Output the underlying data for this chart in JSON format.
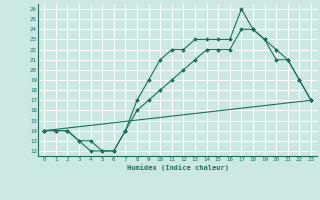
{
  "background_color": "#cce8e4",
  "grid_color": "#ffffff",
  "line_color": "#1e6e5e",
  "xlabel": "Humidex (Indice chaleur)",
  "xlim": [
    -0.5,
    23.5
  ],
  "ylim": [
    11.5,
    26.5
  ],
  "xticks": [
    0,
    1,
    2,
    3,
    4,
    5,
    6,
    7,
    8,
    9,
    10,
    11,
    12,
    13,
    14,
    15,
    16,
    17,
    18,
    19,
    20,
    21,
    22,
    23
  ],
  "yticks": [
    12,
    13,
    14,
    15,
    16,
    17,
    18,
    19,
    20,
    21,
    22,
    23,
    24,
    25,
    26
  ],
  "series1_x": [
    0,
    1,
    2,
    3,
    4,
    5,
    6,
    7,
    8,
    9,
    10,
    11,
    12,
    13,
    14,
    15,
    16,
    17,
    18,
    19,
    20,
    21,
    22,
    23
  ],
  "series1_y": [
    14,
    14,
    14,
    13,
    12,
    12,
    12,
    14,
    17,
    19,
    21,
    22,
    22,
    23,
    23,
    23,
    23,
    26,
    24,
    23,
    21,
    21,
    19,
    17
  ],
  "series2_x": [
    0,
    1,
    2,
    3,
    4,
    5,
    6,
    7,
    8,
    9,
    10,
    11,
    12,
    13,
    14,
    15,
    16,
    17,
    18,
    19,
    20,
    21,
    22,
    23
  ],
  "series2_y": [
    14,
    14,
    14,
    13,
    13,
    12,
    12,
    14,
    16,
    17,
    18,
    19,
    20,
    21,
    22,
    22,
    22,
    24,
    24,
    23,
    22,
    21,
    19,
    17
  ],
  "series3_x": [
    0,
    23
  ],
  "series3_y": [
    14,
    17
  ],
  "figwidth": 3.2,
  "figheight": 2.0,
  "dpi": 100
}
